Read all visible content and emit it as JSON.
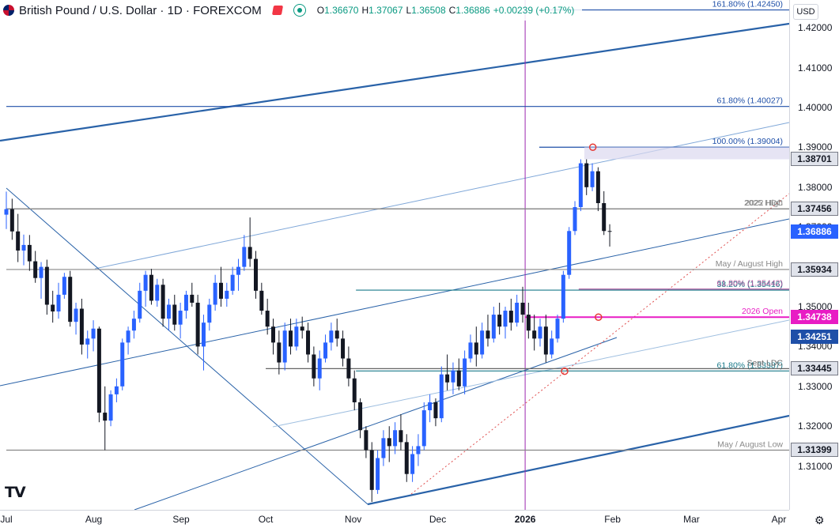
{
  "header": {
    "symbol_title": "British Pound / U.S. Dollar · 1D · FOREXCOM",
    "ohlc": [
      {
        "k": "O",
        "v": "1.36670"
      },
      {
        "k": "H",
        "v": "1.37067"
      },
      {
        "k": "L",
        "v": "1.36508"
      },
      {
        "k": "C",
        "v": "1.36886"
      },
      {
        "k": "",
        "v": "+0.00239 (+0.17%)"
      }
    ],
    "currency": "USD"
  },
  "chart_data": {
    "type": "candlestick",
    "price_range": [
      1.3,
      1.426
    ],
    "y_ticks": [
      1.31,
      1.32,
      1.33,
      1.34,
      1.35,
      1.36,
      1.37,
      1.38,
      1.39,
      1.4,
      1.41,
      1.42
    ],
    "y_tick_labels": [
      "1.31000",
      "1.32000",
      "1.33000",
      "1.34000",
      "1.35000",
      "1.36000",
      "1.37000",
      "1.38000",
      "1.39000",
      "1.40000",
      "1.41000",
      "1.42000"
    ],
    "x_labels": [
      "Jul",
      "Aug",
      "Sep",
      "Oct",
      "Nov",
      "Dec",
      "2026",
      "Feb",
      "Mar",
      "Apr"
    ],
    "x_label_dates": [
      "2025-07-01",
      "2025-08-01",
      "2025-09-01",
      "2025-10-01",
      "2025-11-01",
      "2025-12-01",
      "2026-01-01",
      "2026-02-01",
      "2026-03-01",
      "2026-04-01"
    ],
    "x_range": [
      "2025-07-01",
      "2026-04-01"
    ],
    "price_tags": [
      {
        "value": "1.38701",
        "price": 1.38701,
        "style": "gray"
      },
      {
        "value": "1.37456",
        "price": 1.37456,
        "style": "gray"
      },
      {
        "value": "1.36886",
        "price": 1.36886,
        "style": "blue"
      },
      {
        "value": "1.35934",
        "price": 1.35934,
        "style": "gray"
      },
      {
        "value": "1.34738",
        "price": 1.34738,
        "style": "magenta"
      },
      {
        "value": "1.34251",
        "price": 1.34251,
        "style": "navy"
      },
      {
        "value": "1.33445",
        "price": 1.33445,
        "style": "gray"
      },
      {
        "value": "1.31399",
        "price": 1.31399,
        "style": "gray"
      }
    ],
    "levels": [
      {
        "label": "161.80% (1.42450)",
        "price": 1.4245,
        "color": "#1e4fa8",
        "from": "2026-01-06",
        "to": "2026-03-31"
      },
      {
        "label": "61.80% (1.40027)",
        "price": 1.40027,
        "color": "#1e4fa8",
        "from": "2025-07-01",
        "to": "2026-03-31"
      },
      {
        "label": "100.00% (1.39004)",
        "price": 1.39004,
        "color": "#1e4fa8",
        "from": "2026-01-06",
        "to": "2026-03-31"
      },
      {
        "label": "2022 High",
        "price": 1.37456,
        "color": "#888888",
        "from": "2025-07-01",
        "to": "2026-03-31"
      },
      {
        "label": "2025 HDC",
        "price": 1.37456,
        "color": "#888888",
        "from": "2025-07-01",
        "to": "2026-03-31"
      },
      {
        "label": "May / August High",
        "price": 1.35934,
        "color": "#888888",
        "from": "2025-07-01",
        "to": "2026-03-31"
      },
      {
        "label": "38.20% (1.35416)",
        "price": 1.35416,
        "color": "#1a7a8a",
        "from": "2025-11-02",
        "to": "2026-03-31"
      },
      {
        "label": "61.80% (1.35442)",
        "price": 1.35442,
        "color": "#b05aa0",
        "from": "2026-01-20",
        "to": "2026-03-31"
      },
      {
        "label": "2026 Open",
        "price": 1.34738,
        "color": "#e81cc4",
        "from": "2026-01-01",
        "to": "2026-03-31"
      },
      {
        "label": "61.80% (1.33387)",
        "price": 1.33387,
        "color": "#1a7a8a",
        "from": "2025-11-02",
        "to": "2026-03-31"
      },
      {
        "label": "Sept LDC",
        "price": 1.33445,
        "color": "#666666",
        "from": "2025-10-01",
        "to": "2026-03-31"
      },
      {
        "label": "May / August Low",
        "price": 1.31399,
        "color": "#888888",
        "from": "2025-07-01",
        "to": "2026-03-31"
      }
    ],
    "series": [
      {
        "name": "",
        "dates_start": "2025-07-01",
        "ohlc": [
          [
            1.3731,
            1.3789,
            1.3695,
            1.3745
          ],
          [
            1.3745,
            1.3771,
            1.3668,
            1.3689
          ],
          [
            1.3689,
            1.3733,
            1.3612,
            1.3641
          ],
          [
            1.3641,
            1.3681,
            1.3604,
            1.3655
          ],
          [
            1.3655,
            1.368,
            1.359,
            1.3614
          ],
          [
            1.3614,
            1.364,
            1.356,
            1.3572
          ],
          [
            1.3572,
            1.3612,
            1.352,
            1.36
          ],
          [
            1.36,
            1.3618,
            1.348,
            1.3505
          ],
          [
            1.3505,
            1.354,
            1.346,
            1.3488
          ],
          [
            1.3488,
            1.356,
            1.347,
            1.353
          ],
          [
            1.353,
            1.3585,
            1.352,
            1.3575
          ],
          [
            1.3575,
            1.359,
            1.345,
            1.3462
          ],
          [
            1.3462,
            1.351,
            1.343,
            1.3495
          ],
          [
            1.3495,
            1.352,
            1.338,
            1.3405
          ],
          [
            1.3405,
            1.344,
            1.337,
            1.342
          ],
          [
            1.342,
            1.3466,
            1.3388,
            1.3445
          ],
          [
            1.3445,
            1.345,
            1.321,
            1.3234
          ],
          [
            1.3234,
            1.33,
            1.314,
            1.3214
          ],
          [
            1.3214,
            1.329,
            1.32,
            1.328
          ],
          [
            1.328,
            1.332,
            1.326,
            1.33
          ],
          [
            1.33,
            1.342,
            1.329,
            1.341
          ],
          [
            1.341,
            1.345,
            1.338,
            1.344
          ],
          [
            1.344,
            1.349,
            1.342,
            1.347
          ],
          [
            1.347,
            1.356,
            1.346,
            1.354
          ],
          [
            1.354,
            1.359,
            1.35,
            1.358
          ],
          [
            1.358,
            1.3595,
            1.3505,
            1.3515
          ],
          [
            1.3515,
            1.357,
            1.35,
            1.3555
          ],
          [
            1.3555,
            1.357,
            1.345,
            1.347
          ],
          [
            1.347,
            1.352,
            1.344,
            1.3505
          ],
          [
            1.3505,
            1.353,
            1.344,
            1.3455
          ],
          [
            1.3455,
            1.351,
            1.342,
            1.349
          ],
          [
            1.349,
            1.354,
            1.347,
            1.353
          ],
          [
            1.353,
            1.356,
            1.35,
            1.351
          ],
          [
            1.351,
            1.353,
            1.338,
            1.34
          ],
          [
            1.34,
            1.348,
            1.334,
            1.346
          ],
          [
            1.346,
            1.352,
            1.344,
            1.3505
          ],
          [
            1.3505,
            1.358,
            1.349,
            1.356
          ],
          [
            1.356,
            1.36,
            1.35,
            1.352
          ],
          [
            1.352,
            1.356,
            1.35,
            1.354
          ],
          [
            1.354,
            1.36,
            1.353,
            1.358
          ],
          [
            1.358,
            1.362,
            1.354,
            1.36
          ],
          [
            1.36,
            1.368,
            1.359,
            1.365
          ],
          [
            1.365,
            1.3724,
            1.36,
            1.362
          ],
          [
            1.362,
            1.364,
            1.352,
            1.354
          ],
          [
            1.354,
            1.356,
            1.348,
            1.349
          ],
          [
            1.349,
            1.352,
            1.343,
            1.345
          ],
          [
            1.345,
            1.347,
            1.338,
            1.341
          ],
          [
            1.341,
            1.344,
            1.333,
            1.336
          ],
          [
            1.336,
            1.346,
            1.334,
            1.344
          ],
          [
            1.344,
            1.347,
            1.338,
            1.34
          ],
          [
            1.34,
            1.347,
            1.339,
            1.345
          ],
          [
            1.345,
            1.3475,
            1.342,
            1.344
          ],
          [
            1.344,
            1.346,
            1.336,
            1.338
          ],
          [
            1.338,
            1.34,
            1.33,
            1.332
          ],
          [
            1.332,
            1.339,
            1.329,
            1.337
          ],
          [
            1.337,
            1.343,
            1.336,
            1.341
          ],
          [
            1.341,
            1.346,
            1.339,
            1.344
          ],
          [
            1.344,
            1.347,
            1.34,
            1.342
          ],
          [
            1.342,
            1.344,
            1.335,
            1.337
          ],
          [
            1.337,
            1.34,
            1.33,
            1.332
          ],
          [
            1.332,
            1.334,
            1.324,
            1.326
          ],
          [
            1.326,
            1.327,
            1.317,
            1.319
          ],
          [
            1.319,
            1.32,
            1.312,
            1.314
          ],
          [
            1.314,
            1.316,
            1.301,
            1.304
          ],
          [
            1.304,
            1.314,
            1.303,
            1.312
          ],
          [
            1.312,
            1.319,
            1.31,
            1.317
          ],
          [
            1.317,
            1.32,
            1.311,
            1.315
          ],
          [
            1.315,
            1.321,
            1.313,
            1.319
          ],
          [
            1.319,
            1.323,
            1.314,
            1.316
          ],
          [
            1.316,
            1.318,
            1.306,
            1.308
          ],
          [
            1.308,
            1.315,
            1.306,
            1.313
          ],
          [
            1.313,
            1.318,
            1.31,
            1.315
          ],
          [
            1.315,
            1.326,
            1.314,
            1.324
          ],
          [
            1.324,
            1.328,
            1.321,
            1.326
          ],
          [
            1.326,
            1.327,
            1.32,
            1.322
          ],
          [
            1.322,
            1.335,
            1.321,
            1.333
          ],
          [
            1.333,
            1.338,
            1.329,
            1.331
          ],
          [
            1.331,
            1.336,
            1.328,
            1.334
          ],
          [
            1.334,
            1.337,
            1.329,
            1.33
          ],
          [
            1.33,
            1.339,
            1.328,
            1.337
          ],
          [
            1.337,
            1.343,
            1.336,
            1.341
          ],
          [
            1.341,
            1.345,
            1.335,
            1.338
          ],
          [
            1.338,
            1.346,
            1.337,
            1.344
          ],
          [
            1.344,
            1.348,
            1.34,
            1.342
          ],
          [
            1.342,
            1.35,
            1.341,
            1.348
          ],
          [
            1.348,
            1.351,
            1.343,
            1.345
          ],
          [
            1.345,
            1.35,
            1.342,
            1.349
          ],
          [
            1.349,
            1.352,
            1.344,
            1.346
          ],
          [
            1.346,
            1.353,
            1.345,
            1.351
          ],
          [
            1.351,
            1.355,
            1.346,
            1.348
          ],
          [
            1.348,
            1.351,
            1.342,
            1.344
          ],
          [
            1.344,
            1.348,
            1.339,
            1.342
          ],
          [
            1.342,
            1.347,
            1.34,
            1.345
          ],
          [
            1.345,
            1.348,
            1.336,
            1.338
          ],
          [
            1.338,
            1.344,
            1.337,
            1.342
          ],
          [
            1.342,
            1.348,
            1.341,
            1.347
          ],
          [
            1.347,
            1.359,
            1.346,
            1.358
          ],
          [
            1.358,
            1.37,
            1.357,
            1.369
          ],
          [
            1.369,
            1.3765,
            1.368,
            1.375
          ],
          [
            1.375,
            1.387,
            1.374,
            1.386
          ],
          [
            1.386,
            1.387,
            1.378,
            1.38
          ],
          [
            1.38,
            1.386,
            1.379,
            1.384
          ],
          [
            1.384,
            1.385,
            1.374,
            1.376
          ],
          [
            1.376,
            1.379,
            1.368,
            1.369
          ],
          [
            1.369,
            1.3707,
            1.3651,
            1.3689
          ]
        ]
      }
    ]
  },
  "footer": {
    "logo": "TV"
  }
}
